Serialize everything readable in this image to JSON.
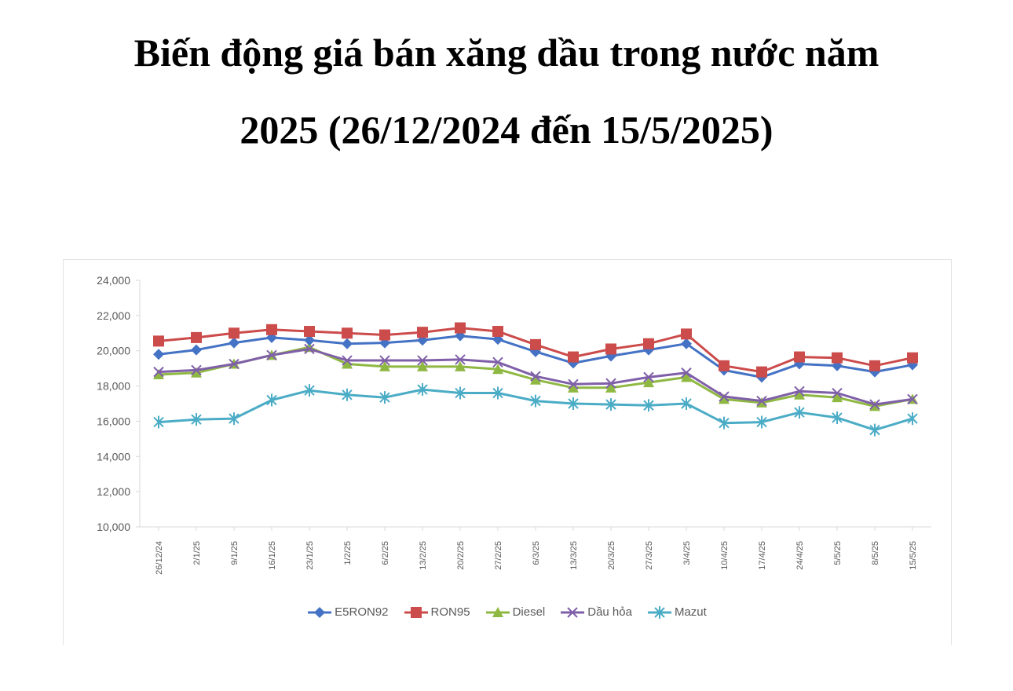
{
  "title": {
    "line1": "Biến động giá bán xăng dầu trong nước năm",
    "line2": "2025 (26/12/2024 đến 15/5/2025)"
  },
  "chart_data": {
    "type": "line",
    "title": "Biến động giá bán xăng dầu trong nước năm 2025 (26/12/2024 đến 15/5/2025)",
    "xlabel": "",
    "ylabel": "",
    "ylim": [
      10000,
      24000
    ],
    "yticks": [
      "10,000",
      "12,000",
      "14,000",
      "16,000",
      "18,000",
      "20,000",
      "22,000",
      "24,000"
    ],
    "grid": false,
    "legend_position": "bottom",
    "categories": [
      "26/12/24",
      "2/1/25",
      "9/1/25",
      "16/1/25",
      "23/1/25",
      "1/2/25",
      "6/2/25",
      "13/2/25",
      "20/2/25",
      "27/2/25",
      "6/3/25",
      "13/3/25",
      "20/3/25",
      "27/3/25",
      "3/4/25",
      "10/4/25",
      "17/4/25",
      "24/4/25",
      "5/5/25",
      "8/5/25",
      "15/5/25"
    ],
    "series": [
      {
        "name": "E5RON92",
        "color": "#4472c4",
        "marker": "diamond",
        "values": [
          19800,
          20050,
          20450,
          20750,
          20600,
          20400,
          20450,
          20600,
          20850,
          20650,
          19950,
          19300,
          19700,
          20050,
          20400,
          18900,
          18500,
          19250,
          19150,
          18800,
          19200
        ]
      },
      {
        "name": "RON95",
        "color": "#cc4b4b",
        "marker": "square",
        "values": [
          20550,
          20750,
          21000,
          21200,
          21100,
          21000,
          20900,
          21050,
          21300,
          21100,
          20350,
          19650,
          20100,
          20400,
          20950,
          19150,
          18800,
          19650,
          19600,
          19150,
          19600
        ]
      },
      {
        "name": "Diesel",
        "color": "#8fb843",
        "marker": "triangle",
        "values": [
          18650,
          18750,
          19250,
          19750,
          20200,
          19250,
          19100,
          19100,
          19100,
          18950,
          18350,
          17900,
          17900,
          18200,
          18500,
          17250,
          17050,
          17500,
          17350,
          16850,
          17250
        ]
      },
      {
        "name": "Dầu hỏa",
        "color": "#7f5fa8",
        "marker": "x",
        "values": [
          18800,
          18900,
          19250,
          19750,
          20100,
          19450,
          19450,
          19450,
          19500,
          19350,
          18550,
          18100,
          18150,
          18500,
          18750,
          17400,
          17150,
          17700,
          17600,
          16950,
          17250
        ]
      },
      {
        "name": "Mazut",
        "color": "#4bacc6",
        "marker": "star",
        "values": [
          15950,
          16100,
          16150,
          17200,
          17750,
          17500,
          17350,
          17800,
          17600,
          17600,
          17150,
          17000,
          16950,
          16900,
          17000,
          15900,
          15950,
          16500,
          16200,
          15500,
          16150
        ]
      }
    ]
  }
}
